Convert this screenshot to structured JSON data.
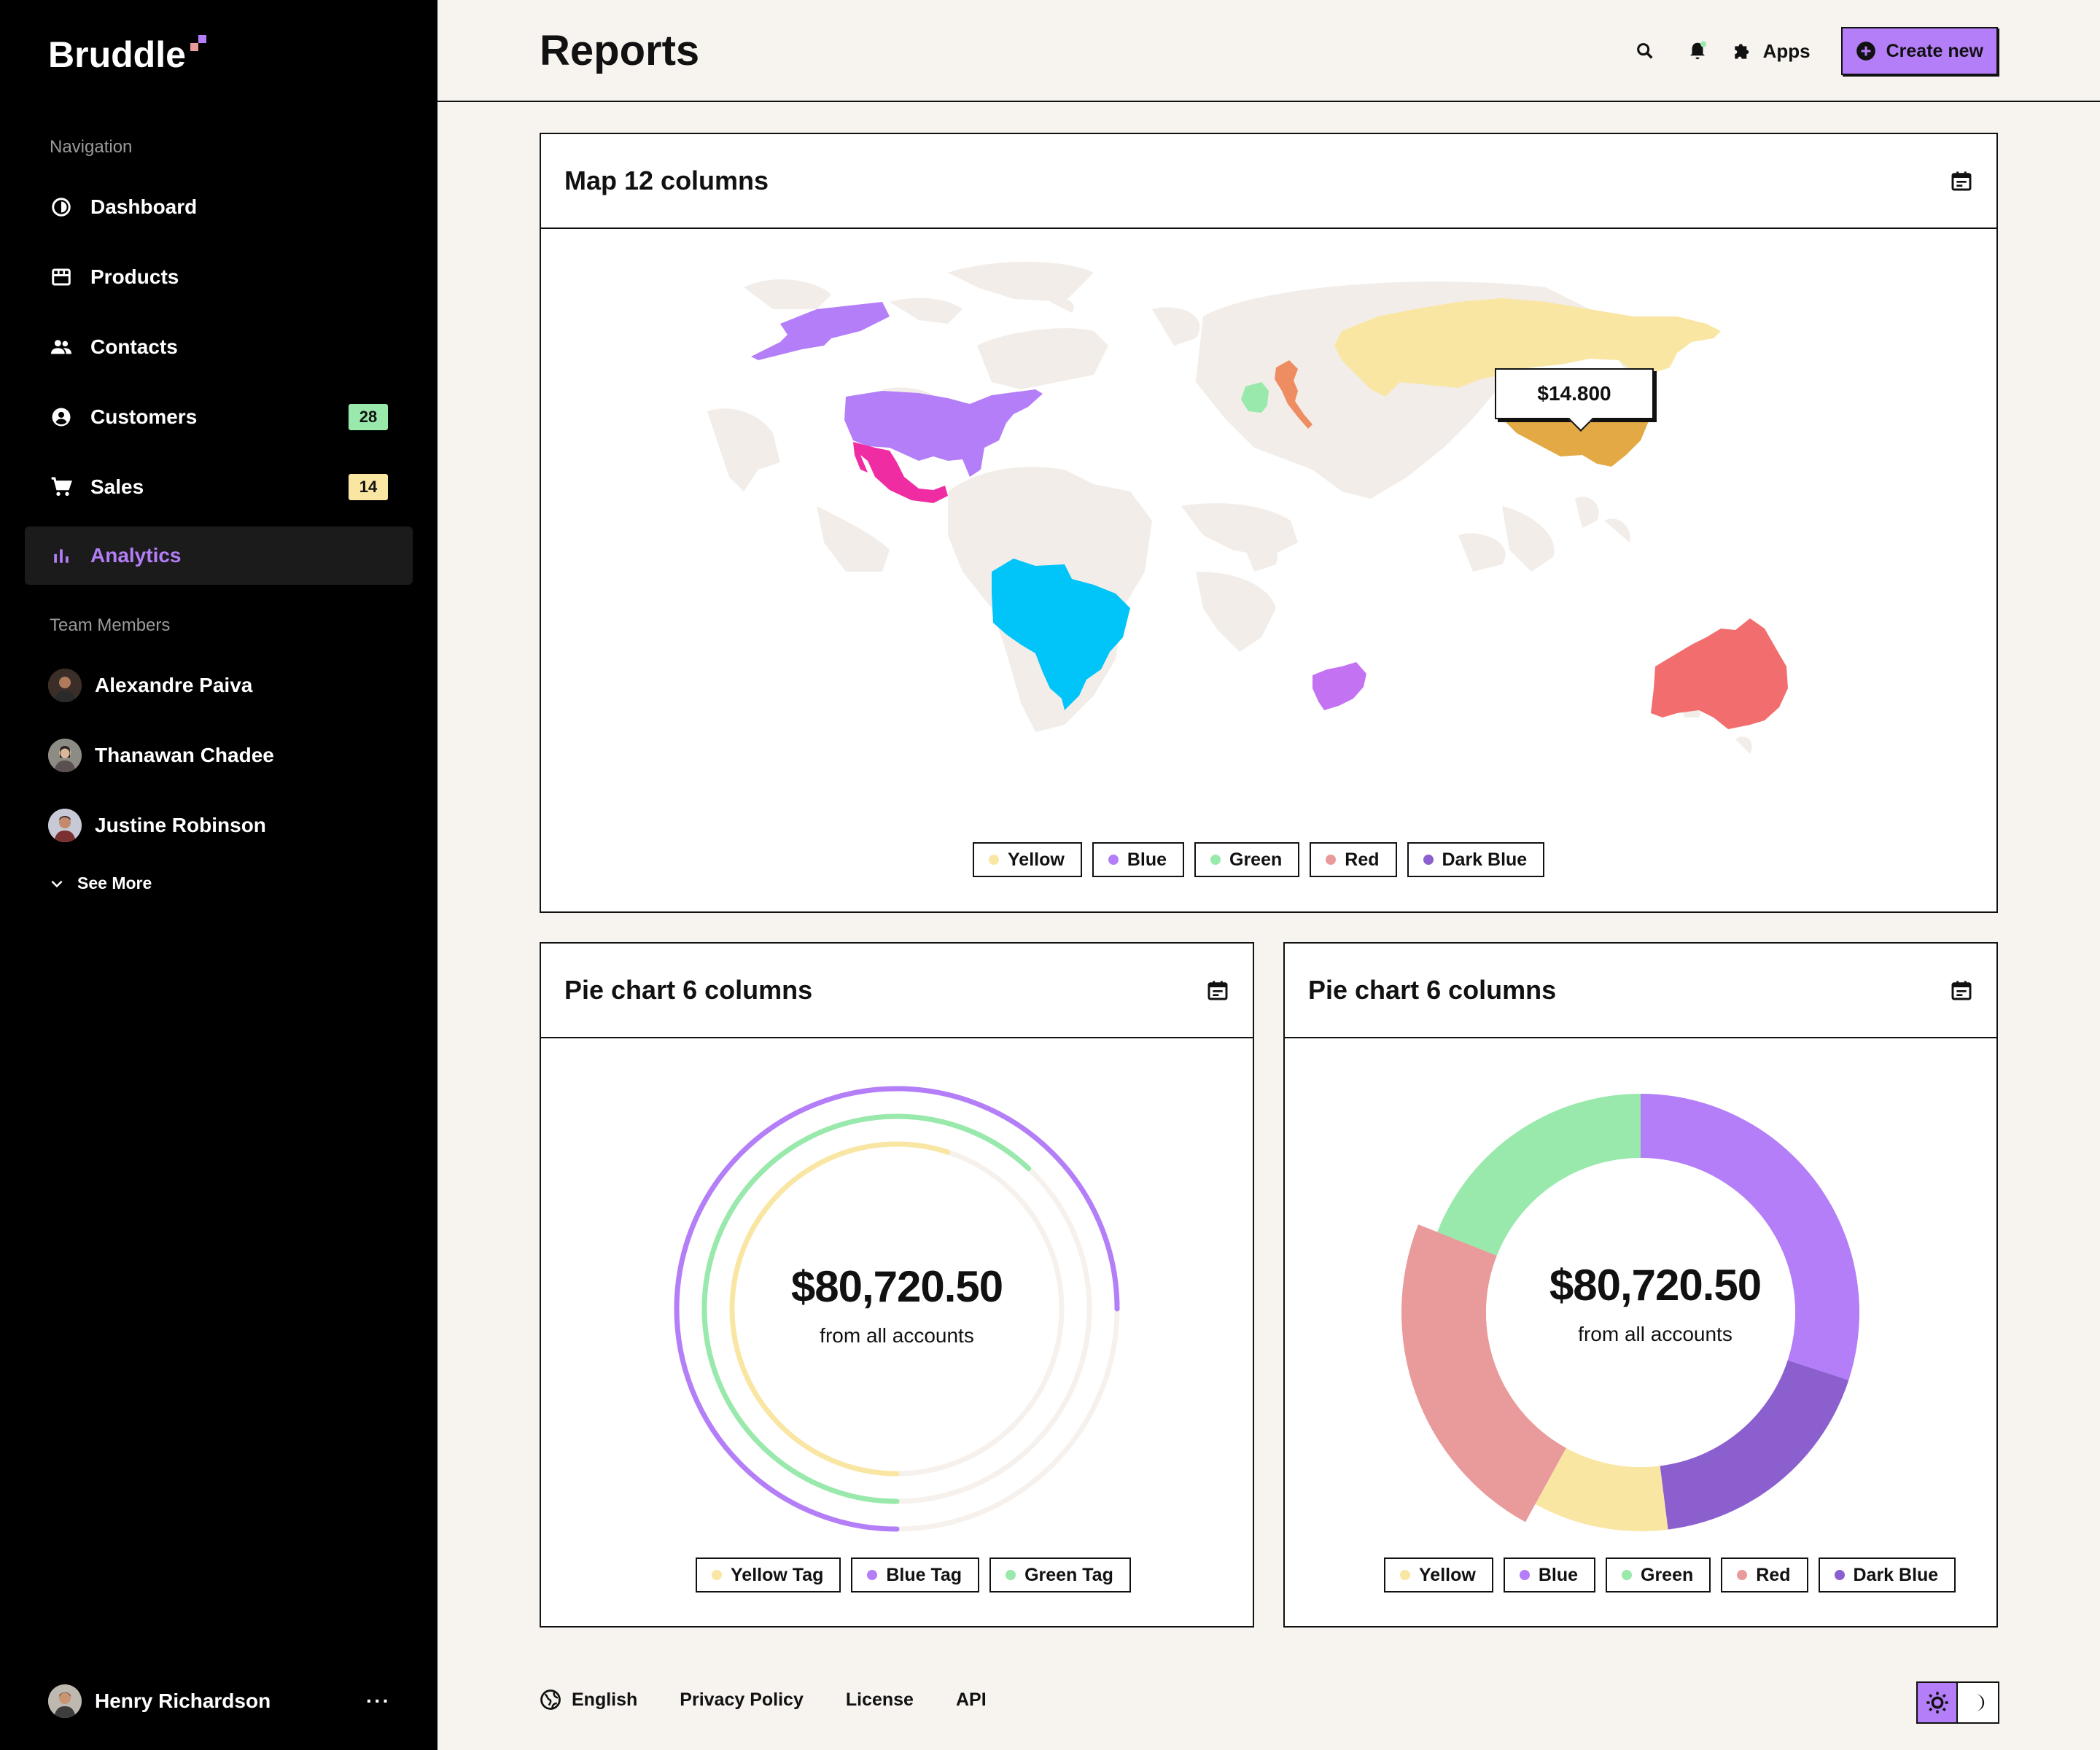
{
  "app": {
    "logo": "Bruddle"
  },
  "sidebar": {
    "nav_title": "Navigation",
    "items": [
      {
        "label": "Dashboard",
        "icon": "dashboard-icon"
      },
      {
        "label": "Products",
        "icon": "store-icon"
      },
      {
        "label": "Contacts",
        "icon": "people-icon"
      },
      {
        "label": "Customers",
        "icon": "account-circle-icon",
        "badge": "28",
        "badge_color": "#98e9ab"
      },
      {
        "label": "Sales",
        "icon": "cart-icon",
        "badge": "14",
        "badge_color": "#fae6a3"
      },
      {
        "label": "Analytics",
        "icon": "bar-chart-icon",
        "active": true
      }
    ],
    "team_title": "Team Members",
    "members": [
      {
        "name": "Alexandre Paiva"
      },
      {
        "name": "Thanawan Chadee"
      },
      {
        "name": "Justine Robinson"
      }
    ],
    "see_more": "See More",
    "user": {
      "name": "Henry Richardson",
      "menu": "···"
    }
  },
  "header": {
    "title": "Reports",
    "apps_label": "Apps",
    "create_label": "Create new"
  },
  "map_card": {
    "title": "Map 12 columns",
    "tooltip": "$14.800",
    "legend": [
      {
        "label": "Yellow",
        "color": "#fae6a3"
      },
      {
        "label": "Blue",
        "color": "#b37ef8"
      },
      {
        "label": "Green",
        "color": "#98e9ab"
      },
      {
        "label": "Red",
        "color": "#e99a9a"
      },
      {
        "label": "Dark Blue",
        "color": "#8b5fce"
      }
    ]
  },
  "pie_left": {
    "title": "Pie chart 6 columns",
    "amount": "$80,720.50",
    "subtitle": "from all accounts",
    "legend": [
      {
        "label": "Yellow Tag",
        "color": "#fae6a3"
      },
      {
        "label": "Blue Tag",
        "color": "#b37ef8"
      },
      {
        "label": "Green Tag",
        "color": "#98e9ab"
      }
    ]
  },
  "pie_right": {
    "title": "Pie chart 6 columns",
    "amount": "$80,720.50",
    "subtitle": "from all accounts",
    "legend": [
      {
        "label": "Yellow",
        "color": "#fae6a3"
      },
      {
        "label": "Blue",
        "color": "#b37ef8"
      },
      {
        "label": "Green",
        "color": "#98e9ab"
      },
      {
        "label": "Red",
        "color": "#e99a9a"
      },
      {
        "label": "Dark Blue",
        "color": "#8b5fce"
      }
    ]
  },
  "chart_data": [
    {
      "type": "radial-progress",
      "series": [
        {
          "name": "Blue Tag",
          "value": 0.75,
          "color": "#b37ef8"
        },
        {
          "name": "Green Tag",
          "value": 0.62,
          "color": "#98e9ab"
        },
        {
          "name": "Yellow Tag",
          "value": 0.55,
          "color": "#fae6a3"
        }
      ]
    },
    {
      "type": "pie",
      "series": [
        {
          "name": "Blue",
          "value": 30,
          "color": "#b37ef8"
        },
        {
          "name": "Dark Blue",
          "value": 18,
          "color": "#8b5fce"
        },
        {
          "name": "Yellow",
          "value": 10,
          "color": "#fae6a3"
        },
        {
          "name": "Red",
          "value": 23,
          "color": "#e99a9a"
        },
        {
          "name": "Green",
          "value": 19,
          "color": "#98e9ab"
        }
      ]
    }
  ],
  "footer": {
    "links": [
      "English",
      "Privacy Policy",
      "License",
      "API"
    ]
  }
}
